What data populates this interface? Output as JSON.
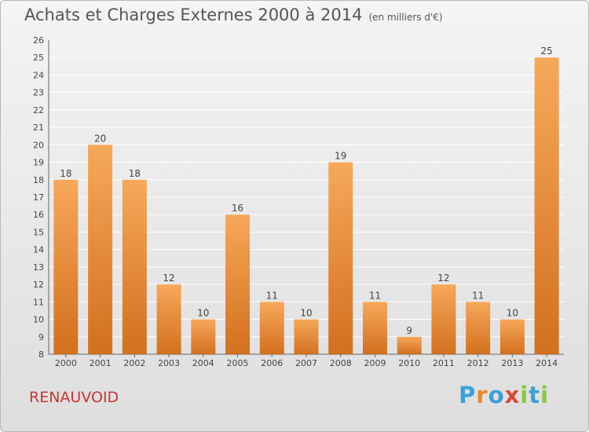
{
  "header": {
    "title": "Achats et Charges Externes 2000 à 2014",
    "unit": "(en milliers d'€)"
  },
  "footer": {
    "town": "RENAUVOID",
    "logo": [
      "P",
      "r",
      "o",
      "x",
      "i",
      "t",
      "i"
    ]
  },
  "colors": {
    "bar_top": "#f7a85a",
    "bar_bottom": "#d2701e",
    "grid": "#ffffff",
    "title": "#555555",
    "town": "#c8362e"
  },
  "chart_data": {
    "type": "bar",
    "title": "Achats et Charges Externes 2000 à 2014",
    "subtitle": "(en milliers d'€)",
    "categories": [
      "2000",
      "2001",
      "2002",
      "2003",
      "2004",
      "2005",
      "2006",
      "2007",
      "2008",
      "2009",
      "2010",
      "2011",
      "2012",
      "2013",
      "2014"
    ],
    "values": [
      18,
      20,
      18,
      12,
      10,
      16,
      11,
      10,
      19,
      11,
      9,
      12,
      11,
      10,
      25
    ],
    "ylim": [
      8,
      26
    ],
    "yticks": [
      8,
      9,
      10,
      11,
      12,
      13,
      14,
      15,
      16,
      17,
      18,
      19,
      20,
      21,
      22,
      23,
      24,
      25,
      26
    ],
    "grid": true,
    "legend": "none"
  }
}
